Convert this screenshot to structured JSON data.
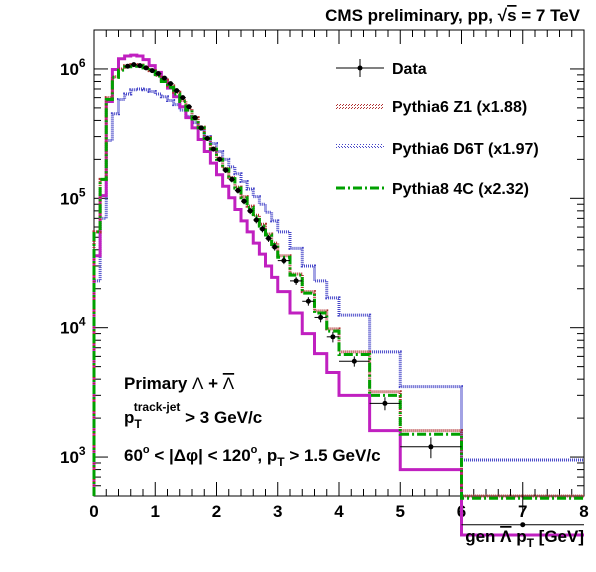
{
  "chart_data": {
    "type": "line",
    "title": "CMS preliminary, pp, √s = 7 TeV",
    "title_parts": {
      "pre": "CMS preliminary, pp, ",
      "sqrt": "√",
      "s": "s",
      "post": " = 7 TeV"
    },
    "xlabel": "gen Λ p",
    "xlabel_parts": {
      "pre": "gen ",
      "lam": "Λ",
      "p": " p",
      "sub": "T",
      "post": " [GeV]"
    },
    "ylabel": "",
    "xlim": [
      0,
      8
    ],
    "ylim": [
      500,
      2000000
    ],
    "yscale": "log",
    "grid": false,
    "legend_position": "top-right",
    "x_ticks": [
      "0",
      "1",
      "2",
      "3",
      "4",
      "5",
      "6",
      "7",
      "8"
    ],
    "y_ticks": [
      {
        "value": 1000,
        "base": "10",
        "exp": "3"
      },
      {
        "value": 10000,
        "base": "10",
        "exp": "4"
      },
      {
        "value": 100000,
        "base": "10",
        "exp": "5"
      },
      {
        "value": 1000000,
        "base": "10",
        "exp": "6"
      }
    ],
    "legend": [
      {
        "label": "Data"
      },
      {
        "label": "Pythia6 Z1 (x1.88)"
      },
      {
        "label": "Pythia6 D6T (x1.97)"
      },
      {
        "label": "Pythia8 4C (x2.32)"
      }
    ],
    "annotations": {
      "line1": {
        "pre": "Primary ",
        "lam": "Λ",
        "plus": " + ",
        "lambar": "Λ"
      },
      "line2": {
        "p": "p",
        "sub": "T",
        "sup": "track-jet",
        "post": " > 3 GeV/c"
      },
      "line3": {
        "a": "60",
        "deg1": "o",
        "b": " < |Δφ| < 120",
        "deg2": "o",
        "c": ", p",
        "sub": "T",
        "d": " > 1.5 GeV/c"
      }
    },
    "bin_edges": [
      0,
      0.1,
      0.2,
      0.3,
      0.4,
      0.5,
      0.6,
      0.7,
      0.8,
      0.9,
      1.0,
      1.1,
      1.2,
      1.3,
      1.4,
      1.5,
      1.6,
      1.7,
      1.8,
      1.9,
      2.0,
      2.1,
      2.2,
      2.3,
      2.4,
      2.5,
      2.6,
      2.7,
      2.8,
      2.9,
      3.0,
      3.2,
      3.4,
      3.6,
      3.8,
      4.0,
      4.5,
      5.0,
      6.0,
      8.0
    ],
    "series": [
      {
        "name": "Data",
        "color": "#000000",
        "style": "markers",
        "x": [
          0.55,
          0.65,
          0.75,
          0.85,
          0.95,
          1.05,
          1.15,
          1.25,
          1.35,
          1.45,
          1.55,
          1.65,
          1.75,
          1.85,
          1.95,
          2.05,
          2.15,
          2.25,
          2.35,
          2.45,
          2.55,
          2.65,
          2.75,
          2.85,
          2.95,
          3.1,
          3.3,
          3.5,
          3.7,
          3.9,
          4.25,
          4.75,
          5.5,
          7.0
        ],
        "values": [
          1050000,
          1080000,
          1060000,
          1020000,
          970000,
          920000,
          850000,
          770000,
          680000,
          600000,
          510000,
          420000,
          350000,
          290000,
          240000,
          200000,
          165000,
          140000,
          115000,
          95000,
          80000,
          68000,
          58000,
          49000,
          42000,
          33000,
          23000,
          16000,
          12000,
          8500,
          5500,
          2600,
          1200,
          300
        ],
        "y_err": [
          40000,
          40000,
          40000,
          40000,
          40000,
          35000,
          30000,
          28000,
          25000,
          22000,
          20000,
          16000,
          14000,
          12000,
          10000,
          9000,
          8000,
          7000,
          6000,
          5000,
          4500,
          4000,
          3500,
          3000,
          2600,
          2000,
          1600,
          1200,
          1000,
          800,
          500,
          300,
          220,
          60
        ]
      },
      {
        "name": "Pythia6 Z1 (x1.88)",
        "color": "#b03030",
        "style": "step-dotted",
        "values": [
          55000,
          140000,
          600000,
          870000,
          1000000,
          1060000,
          1080000,
          1070000,
          1030000,
          970000,
          890000,
          820000,
          740000,
          660000,
          570000,
          490000,
          420000,
          355000,
          295000,
          245000,
          205000,
          170000,
          145000,
          122000,
          103000,
          87000,
          74000,
          63000,
          53000,
          45000,
          36000,
          26000,
          19000,
          13500,
          9800,
          6500,
          3200,
          1600,
          500
        ]
      },
      {
        "name": "Pythia6 D6T (x1.97)",
        "color": "#4646c8",
        "style": "step-hatched",
        "values": [
          23000,
          70000,
          280000,
          450000,
          580000,
          640000,
          690000,
          700000,
          690000,
          670000,
          640000,
          610000,
          570000,
          530000,
          480000,
          430000,
          385000,
          340000,
          300000,
          265000,
          230000,
          200000,
          175000,
          155000,
          135000,
          118000,
          103000,
          90000,
          78000,
          67000,
          55000,
          41000,
          30000,
          23000,
          17000,
          12500,
          6500,
          3500,
          950
        ]
      },
      {
        "name": "Pythia8 4C (x2.32)",
        "color": "#00a000",
        "style": "step-dashdot",
        "values": [
          55000,
          140000,
          580000,
          860000,
          980000,
          1040000,
          1050000,
          1060000,
          1020000,
          960000,
          880000,
          800000,
          720000,
          640000,
          560000,
          480000,
          410000,
          350000,
          290000,
          240000,
          200000,
          168000,
          142000,
          120000,
          101000,
          85000,
          72000,
          61000,
          52000,
          44000,
          35000,
          25500,
          18500,
          13000,
          9400,
          6200,
          3000,
          1500,
          480
        ]
      },
      {
        "name": "Sum",
        "color": "#c020c0",
        "style": "step-solid",
        "values": [
          36000,
          105000,
          560000,
          990000,
          1200000,
          1260000,
          1280000,
          1260000,
          1180000,
          1060000,
          940000,
          820000,
          710000,
          610000,
          510000,
          420000,
          350000,
          285000,
          230000,
          187000,
          152000,
          124000,
          101000,
          82000,
          67000,
          55000,
          45000,
          37000,
          30000,
          24500,
          19000,
          13000,
          9000,
          6300,
          4500,
          3000,
          1600,
          800,
          250
        ]
      }
    ]
  }
}
